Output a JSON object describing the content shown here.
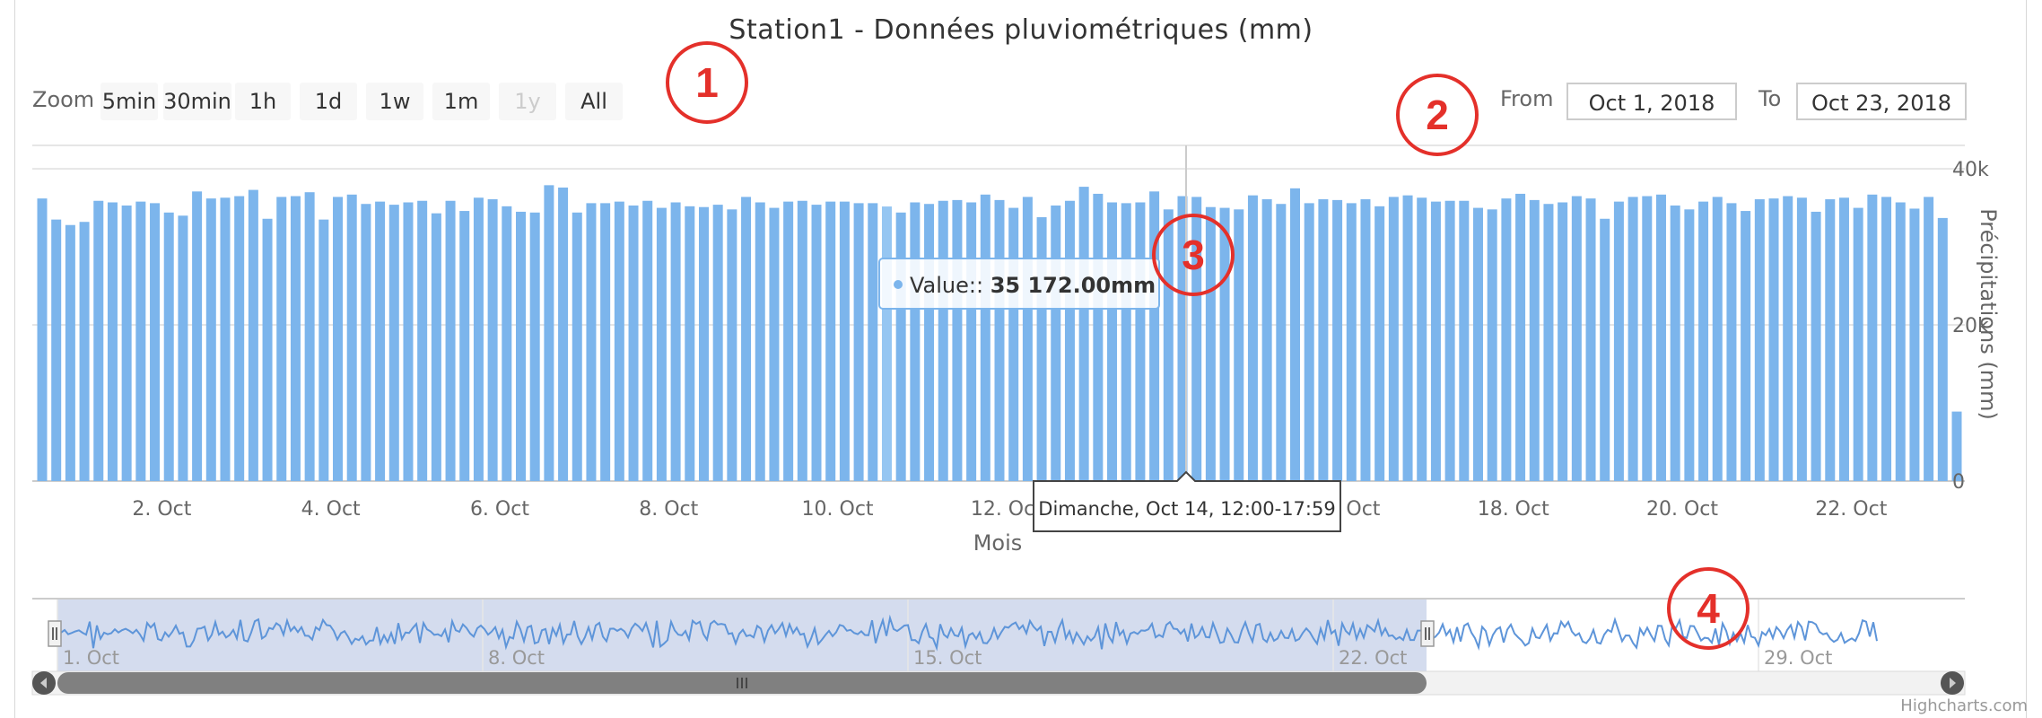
{
  "chart_data": {
    "type": "bar",
    "title": "Station1 - Données pluviométriques (mm)",
    "xlabel": "Mois",
    "ylabel": "Précipitations (mm)",
    "x_tick_labels": [
      "2. Oct",
      "4. Oct",
      "6. Oct",
      "8. Oct",
      "10. Oct",
      "12. Oct",
      "14. Oct",
      "16. Oct",
      "18. Oct",
      "20. Oct",
      "22. Oct"
    ],
    "y_tick_labels": [
      "0",
      "20k",
      "40k"
    ],
    "ylim": [
      0,
      43000
    ],
    "grid": true,
    "bar_color": "#7cb5ec",
    "values": [
      36200,
      33500,
      32800,
      33200,
      35900,
      35700,
      35300,
      35800,
      35600,
      34400,
      34000,
      37100,
      36200,
      36300,
      36500,
      37300,
      33600,
      36400,
      36500,
      37000,
      33500,
      36400,
      36700,
      35500,
      35800,
      35400,
      35700,
      35900,
      34300,
      35900,
      34600,
      36300,
      36100,
      35200,
      34500,
      34400,
      37900,
      37600,
      34400,
      35600,
      35600,
      35800,
      35300,
      35900,
      35000,
      35700,
      35200,
      35100,
      35400,
      34800,
      36400,
      35700,
      35000,
      35800,
      35900,
      35400,
      35800,
      35800,
      35600,
      35600,
      35172,
      34400,
      35700,
      35500,
      35900,
      36000,
      35700,
      36700,
      36000,
      35000,
      36400,
      33800,
      35300,
      35900,
      37700,
      36800,
      35700,
      35600,
      35700,
      37100,
      34800,
      36500,
      36400,
      35100,
      35000,
      34800,
      36600,
      36100,
      35500,
      37500,
      35600,
      36100,
      36000,
      35600,
      36100,
      35200,
      36400,
      36600,
      36300,
      35800,
      35900,
      35900,
      35000,
      34800,
      36200,
      36800,
      36000,
      35500,
      35700,
      36500,
      36200,
      33600,
      35800,
      36400,
      36500,
      36700,
      35300,
      34800,
      35800,
      36400,
      35600,
      34600,
      36100,
      36200,
      36500,
      36300,
      34500,
      36100,
      36300,
      35000,
      36700,
      36400,
      35700,
      34900,
      36400,
      33700,
      8900
    ],
    "tooltip": {
      "header": "Dimanche, Oct 14, 12:00-17:59",
      "series_label": "Value:: ",
      "value_text": "35 172.00mm",
      "hovered_index": 60
    },
    "navigator": {
      "tick_labels": [
        "1. Oct",
        "8. Oct",
        "15. Oct",
        "22. Oct",
        "29. Oct"
      ],
      "selected_range_fraction": [
        0,
        0.7
      ]
    }
  },
  "toolbar": {
    "zoom_label": "Zoom",
    "zoom_buttons": [
      {
        "label": "5min",
        "enabled": true
      },
      {
        "label": "30min",
        "enabled": true
      },
      {
        "label": "1h",
        "enabled": true
      },
      {
        "label": "1d",
        "enabled": true
      },
      {
        "label": "1w",
        "enabled": true
      },
      {
        "label": "1m",
        "enabled": true
      },
      {
        "label": "1y",
        "enabled": false
      },
      {
        "label": "All",
        "enabled": true
      }
    ],
    "from_label": "From",
    "from_value": "Oct 1, 2018",
    "to_label": "To",
    "to_value": "Oct 23, 2018"
  },
  "annotations": [
    "1",
    "2",
    "3",
    "4"
  ],
  "credit": "Highcharts.com",
  "colors": {
    "bar": "#7cb5ec",
    "marker": "#e4302a",
    "navigator_fill": "#ccd6eb"
  }
}
